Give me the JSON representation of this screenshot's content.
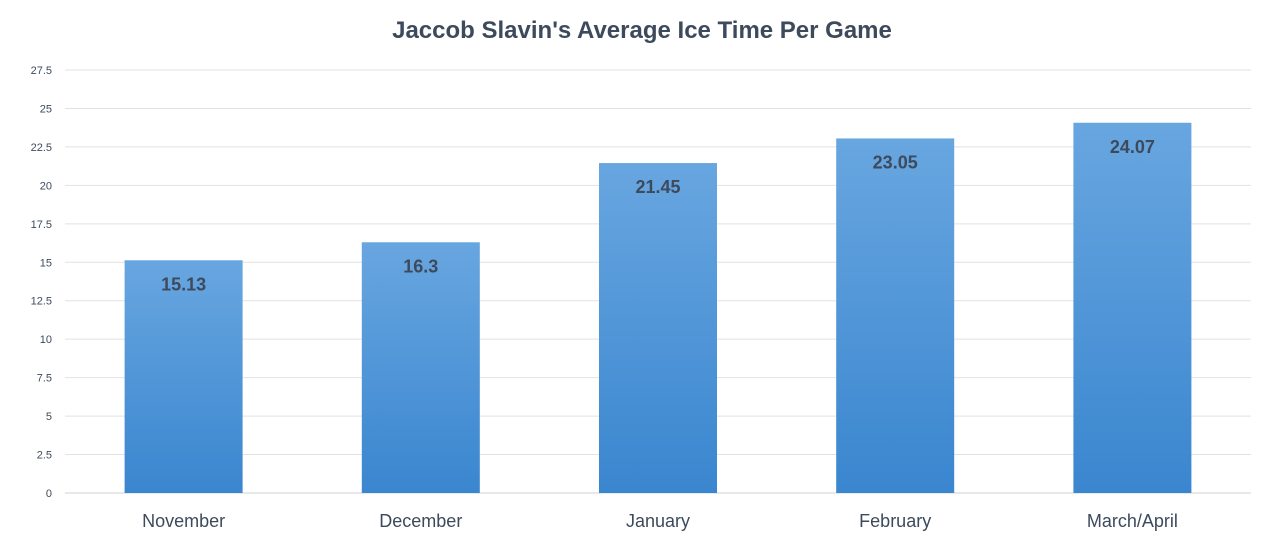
{
  "chart_data": {
    "type": "bar",
    "title": "Jaccob Slavin's Average Ice Time Per Game",
    "xlabel": "",
    "ylabel": "",
    "categories": [
      "November",
      "December",
      "January",
      "February",
      "March/April"
    ],
    "values": [
      15.13,
      16.3,
      21.45,
      23.05,
      24.07
    ],
    "value_labels": [
      "15.13",
      "16.3",
      "21.45",
      "23.05",
      "24.07"
    ],
    "ylim": [
      0,
      27.5
    ],
    "yticks": [
      "0",
      "2.5",
      "5",
      "7.5",
      "10",
      "12.5",
      "15",
      "17.5",
      "20",
      "22.5",
      "25",
      "27.5"
    ],
    "grid": true,
    "legend": "none",
    "colors": {
      "bar_top": "#68a6e0",
      "bar_bottom": "#3a86cf",
      "text": "#3d4a5c",
      "grid": "#e2e2e2"
    }
  }
}
